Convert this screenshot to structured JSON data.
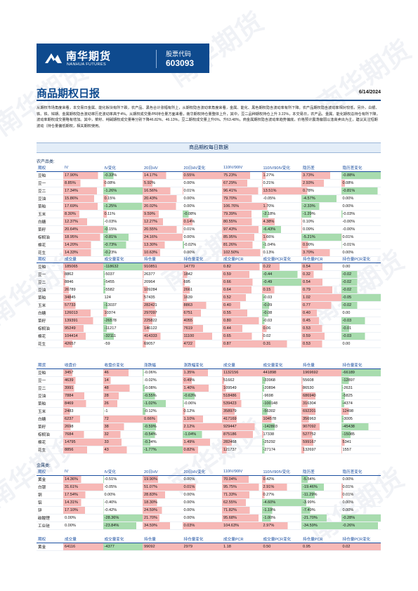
{
  "brand": {
    "name": "南华期货",
    "name_en": "NANHUA FUTURES",
    "code_label": "股票代码",
    "code": "603093"
  },
  "report": {
    "title": "商品期权日报",
    "date": "6/14/2024"
  },
  "summary": "从期权市场角度来看，本交易日金属、能化板块有所下跌，农产品、黑色合计涨幅有所上，从期权隐含波动率角度来看，金属、能化、黑色期权隐含波动率有所下降。农产品期权隐含波动率相对较低，另外，白银、铁、铁、锌期、金属期权隐含波动率历史波动率高于4%。从期权成交量/PR持仓量方面来看，南华期权持仓量整体上升，其中，豆二品种期权持仓上升 3.22%，本交易日，农产品、金属、能化期权总持仓有所下降，波动率期权成交量略有增加。其中，菜籽、纯碱期权成交量等分别下降46.82%、46.13%，豆二期权成交量上升6%、升63.48%，商金属期权隐含波动率趋势偏底，价格预计震荡偏弱以逢高卖出为主，建议关注短期波动（持仓量偏低期权，相关期权使用。",
  "section_title": "商品期权每日数据",
  "agri_label": "农产品类:",
  "metal_label": "金属类:",
  "t1": {
    "headers": [
      "期权",
      "IV",
      "IV变化",
      "20日HV",
      "20日HV变化",
      "110IV/90IV",
      "110IV/90IV变化",
      "隐历差",
      "隐历差变化"
    ],
    "rows": [
      [
        "豆粕",
        "17.90%",
        "-0.33%",
        "14.17%",
        "0.55%",
        "75.23%",
        "1.27%",
        "3.73%",
        "-0.88%"
      ],
      [
        "豆一",
        "8.85%",
        "0.08%",
        "5.92%",
        "0.00%",
        "67.29%",
        "0.21%",
        "2.93%",
        "0.08%"
      ],
      [
        "豆二",
        "17.34%",
        "-1.26%",
        "16.56%",
        "0.01%",
        "96.41%",
        "13.51%",
        "0.78%",
        "-0.81%"
      ],
      [
        "豆油",
        "15.86%",
        "0.15%",
        "20.43%",
        "0.00%",
        "79.70%",
        "-0.05%",
        "-4.57%",
        "0.00%"
      ],
      [
        "菜粕",
        "17.69%",
        "-1.25%",
        "20.02%",
        "0.00%",
        "106.76%",
        "1.70%",
        "-2.33%",
        "0.00%"
      ],
      [
        "玉米",
        "8.30%",
        "0.11%",
        "9.59%",
        "-0.08%",
        "79.39%",
        "-2.18%",
        "-1.29%",
        "-0.03%"
      ],
      [
        "白糖",
        "12.37%",
        "-0.03%",
        "12.27%",
        "0.14%",
        "80.55%",
        "4.38%",
        "0.10%",
        "-0.00%"
      ],
      [
        "菜籽",
        "20.64%",
        "-0.15%",
        "20.55%",
        "0.01%",
        "97.43%",
        "-6.43%",
        "0.09%",
        "-0.00%"
      ],
      [
        "棕榈油",
        "18.95%",
        "-0.81%",
        "24.16%",
        "0.00%",
        "85.95%",
        "1.66%",
        "-5.21%",
        "0.01%"
      ],
      [
        "棉花",
        "14.20%",
        "-0.73%",
        "13.30%",
        "-0.02%",
        "81.26%",
        "-1.04%",
        "0.90%",
        "-0.01%"
      ],
      [
        "花生",
        "14.33%",
        "-0.23%",
        "10.63%",
        "0.00%",
        "102.50%",
        "0.13%",
        "3.70%",
        "0.00%"
      ]
    ]
  },
  "t2": {
    "headers": [
      "期权",
      "成交量",
      "成交量变化",
      "持仓量",
      "持仓量变化",
      "成交量PCR",
      "成交量PCR变化",
      "持仓量PCR",
      "持仓量PCR变化"
    ],
    "rows": [
      [
        "豆粕",
        "185065",
        "-118632",
        "910851",
        "14770",
        "0.82",
        "0.22",
        "0.54",
        "0.00"
      ],
      [
        "豆一",
        "8862",
        "-5037",
        "26377",
        "1842",
        "0.59",
        "-0.44",
        "0.32",
        "-0.02"
      ],
      [
        "豆二",
        "8846",
        "-5455",
        "20964",
        "695",
        "0.66",
        "-0.49",
        "0.54",
        "-0.02"
      ],
      [
        "豆油",
        "26789",
        "-5582",
        "109284",
        "2661",
        "0.64",
        "0.15",
        "0.79",
        "-0.02"
      ],
      [
        "菜粕",
        "34845",
        "124",
        "57435",
        "1639",
        "0.52",
        "-0.03",
        "1.02",
        "-0.05"
      ],
      [
        "玉米",
        "57733",
        "-13037",
        "282421",
        "8863",
        "0.40",
        "-0.09",
        "0.77",
        "-0.02"
      ],
      [
        "白糖",
        "126013",
        "10374",
        "297097",
        "6751",
        "0.55",
        "-0.08",
        "0.40",
        "0.00"
      ],
      [
        "菜籽",
        "139391",
        "-26578",
        "225822",
        "4055",
        "0.80",
        "-0.03",
        "0.45",
        "-0.03"
      ],
      [
        "棕榈油",
        "95249",
        "-11217",
        "146122",
        "7619",
        "0.44",
        "0.06",
        "0.53",
        "-0.01"
      ],
      [
        "棉花",
        "104414",
        "-32111",
        "414333",
        "11100",
        "0.65",
        "0.02",
        "0.59",
        "-0.03"
      ],
      [
        "花生",
        "42657",
        "-59",
        "69057",
        "4722",
        "0.87",
        "0.31",
        "0.53",
        "0.00"
      ]
    ]
  },
  "t3": {
    "headers": [
      "期货",
      "收盘价",
      "收盘价变化",
      "涨跌幅",
      "涨跌幅变化",
      "成交量",
      "成交量变化",
      "持仓量",
      "持仓量变化"
    ],
    "rows": [
      [
        "豆粕",
        "3457",
        "46",
        "-0.06%",
        "1.35%",
        "1132156",
        "441898",
        "1969692",
        "-66189"
      ],
      [
        "豆一",
        "4639",
        "14",
        "-0.02%",
        "0.49%",
        "51662",
        "-33968",
        "55608",
        "-12897"
      ],
      [
        "豆二",
        "3991",
        "48",
        "-0.08%",
        "1.40%",
        "109549",
        "-20894",
        "86530",
        "-2631"
      ],
      [
        "豆油",
        "7884",
        "28",
        "-0.55%",
        "-0.63%",
        "518486",
        "-9698",
        "686940",
        "-5825"
      ],
      [
        "菜粕",
        "8469",
        "26",
        "-1.02%",
        "-0.06%",
        "539423",
        "-100148",
        "316304",
        "-4374"
      ],
      [
        "玉米",
        "2483",
        "-1",
        "-0.12%",
        "0.12%",
        "358979",
        "-56302",
        "692201",
        "12498"
      ],
      [
        "白糖",
        "6237",
        "72",
        "0.66%",
        "1.10%",
        "417169",
        "104578",
        "356963",
        "-3005"
      ],
      [
        "菜籽",
        "2698",
        "38",
        "-0.59%",
        "2.12%",
        "929447",
        "-142803",
        "907092",
        "-45438"
      ],
      [
        "棕榈油",
        "7684",
        "32",
        "-0.54%",
        "-1.04%",
        "875186",
        "17338",
        "527752",
        "-15085"
      ],
      [
        "棉花",
        "14795",
        "33",
        "-0.34%",
        "1.49%",
        "282468",
        "-25292",
        "599167",
        "5341"
      ],
      [
        "花生",
        "8856",
        "43",
        "-1.77%",
        "0.82%",
        "121737",
        "-27174",
        "132697",
        "1557"
      ]
    ]
  },
  "t4": {
    "headers": [
      "期权",
      "IV",
      "IV变化",
      "20日HV",
      "20日HV变化",
      "110IV/90IV",
      "110IV/90IV变化",
      "隐历差",
      "隐历差变化"
    ],
    "rows": [
      [
        "黄金",
        "14.36%",
        "-0.51%",
        "19.90%",
        "0.00%",
        "70.04%",
        "0.42%",
        "-5.54%",
        "0.00%"
      ],
      [
        "白银",
        "31.61%",
        "-0.05%",
        "51.07%",
        "0.01%",
        "95.75%",
        "2.91%",
        "-19.46%",
        "0.01%"
      ],
      [
        "铜",
        "17.54%",
        "0.00%",
        "28.83%",
        "0.00%",
        "71.33%",
        "0.27%",
        "-11.29%",
        "0.01%"
      ],
      [
        "铝",
        "14.31%",
        "-0.40%",
        "18.30%",
        "0.00%",
        "62.55%",
        "-4.60%",
        "-3.99%",
        "0.00%"
      ],
      [
        "锌",
        "17.10%",
        "-0.42%",
        "24.59%",
        "0.00%",
        "71.82%",
        "-1.19%",
        "-7.49%",
        "0.00%"
      ],
      [
        "碳酸锂",
        "0.00%",
        "-28.36%",
        "21.70%",
        "0.00%",
        "95.68%",
        "-1.00%",
        "-21.70%",
        "-0.28%"
      ],
      [
        "工业硅",
        "0.00%",
        "-23.84%",
        "34.59%",
        "0.03%",
        "104.63%",
        "2.97%",
        "-34.59%",
        "-0.26%"
      ]
    ]
  },
  "t5": {
    "headers": [
      "期权",
      "成交量",
      "成交量变化",
      "持仓量",
      "持仓量变化",
      "成交量PCR",
      "成交量PCR变化",
      "持仓量PCR",
      "持仓量PCR变化"
    ],
    "rows": [
      [
        "黄金",
        "64116",
        "-4377",
        "99092",
        "2979",
        "1.18",
        "0.50",
        "0.95",
        "0.02"
      ]
    ]
  },
  "colors": {
    "brand": "#0e4a8e",
    "pos": "#e9484f",
    "neg": "#2f9b45",
    "pos_light": "#f7b8b6",
    "neg_light": "#a8dcae",
    "header": "#1a4ea0"
  },
  "watermark": "南华期货"
}
